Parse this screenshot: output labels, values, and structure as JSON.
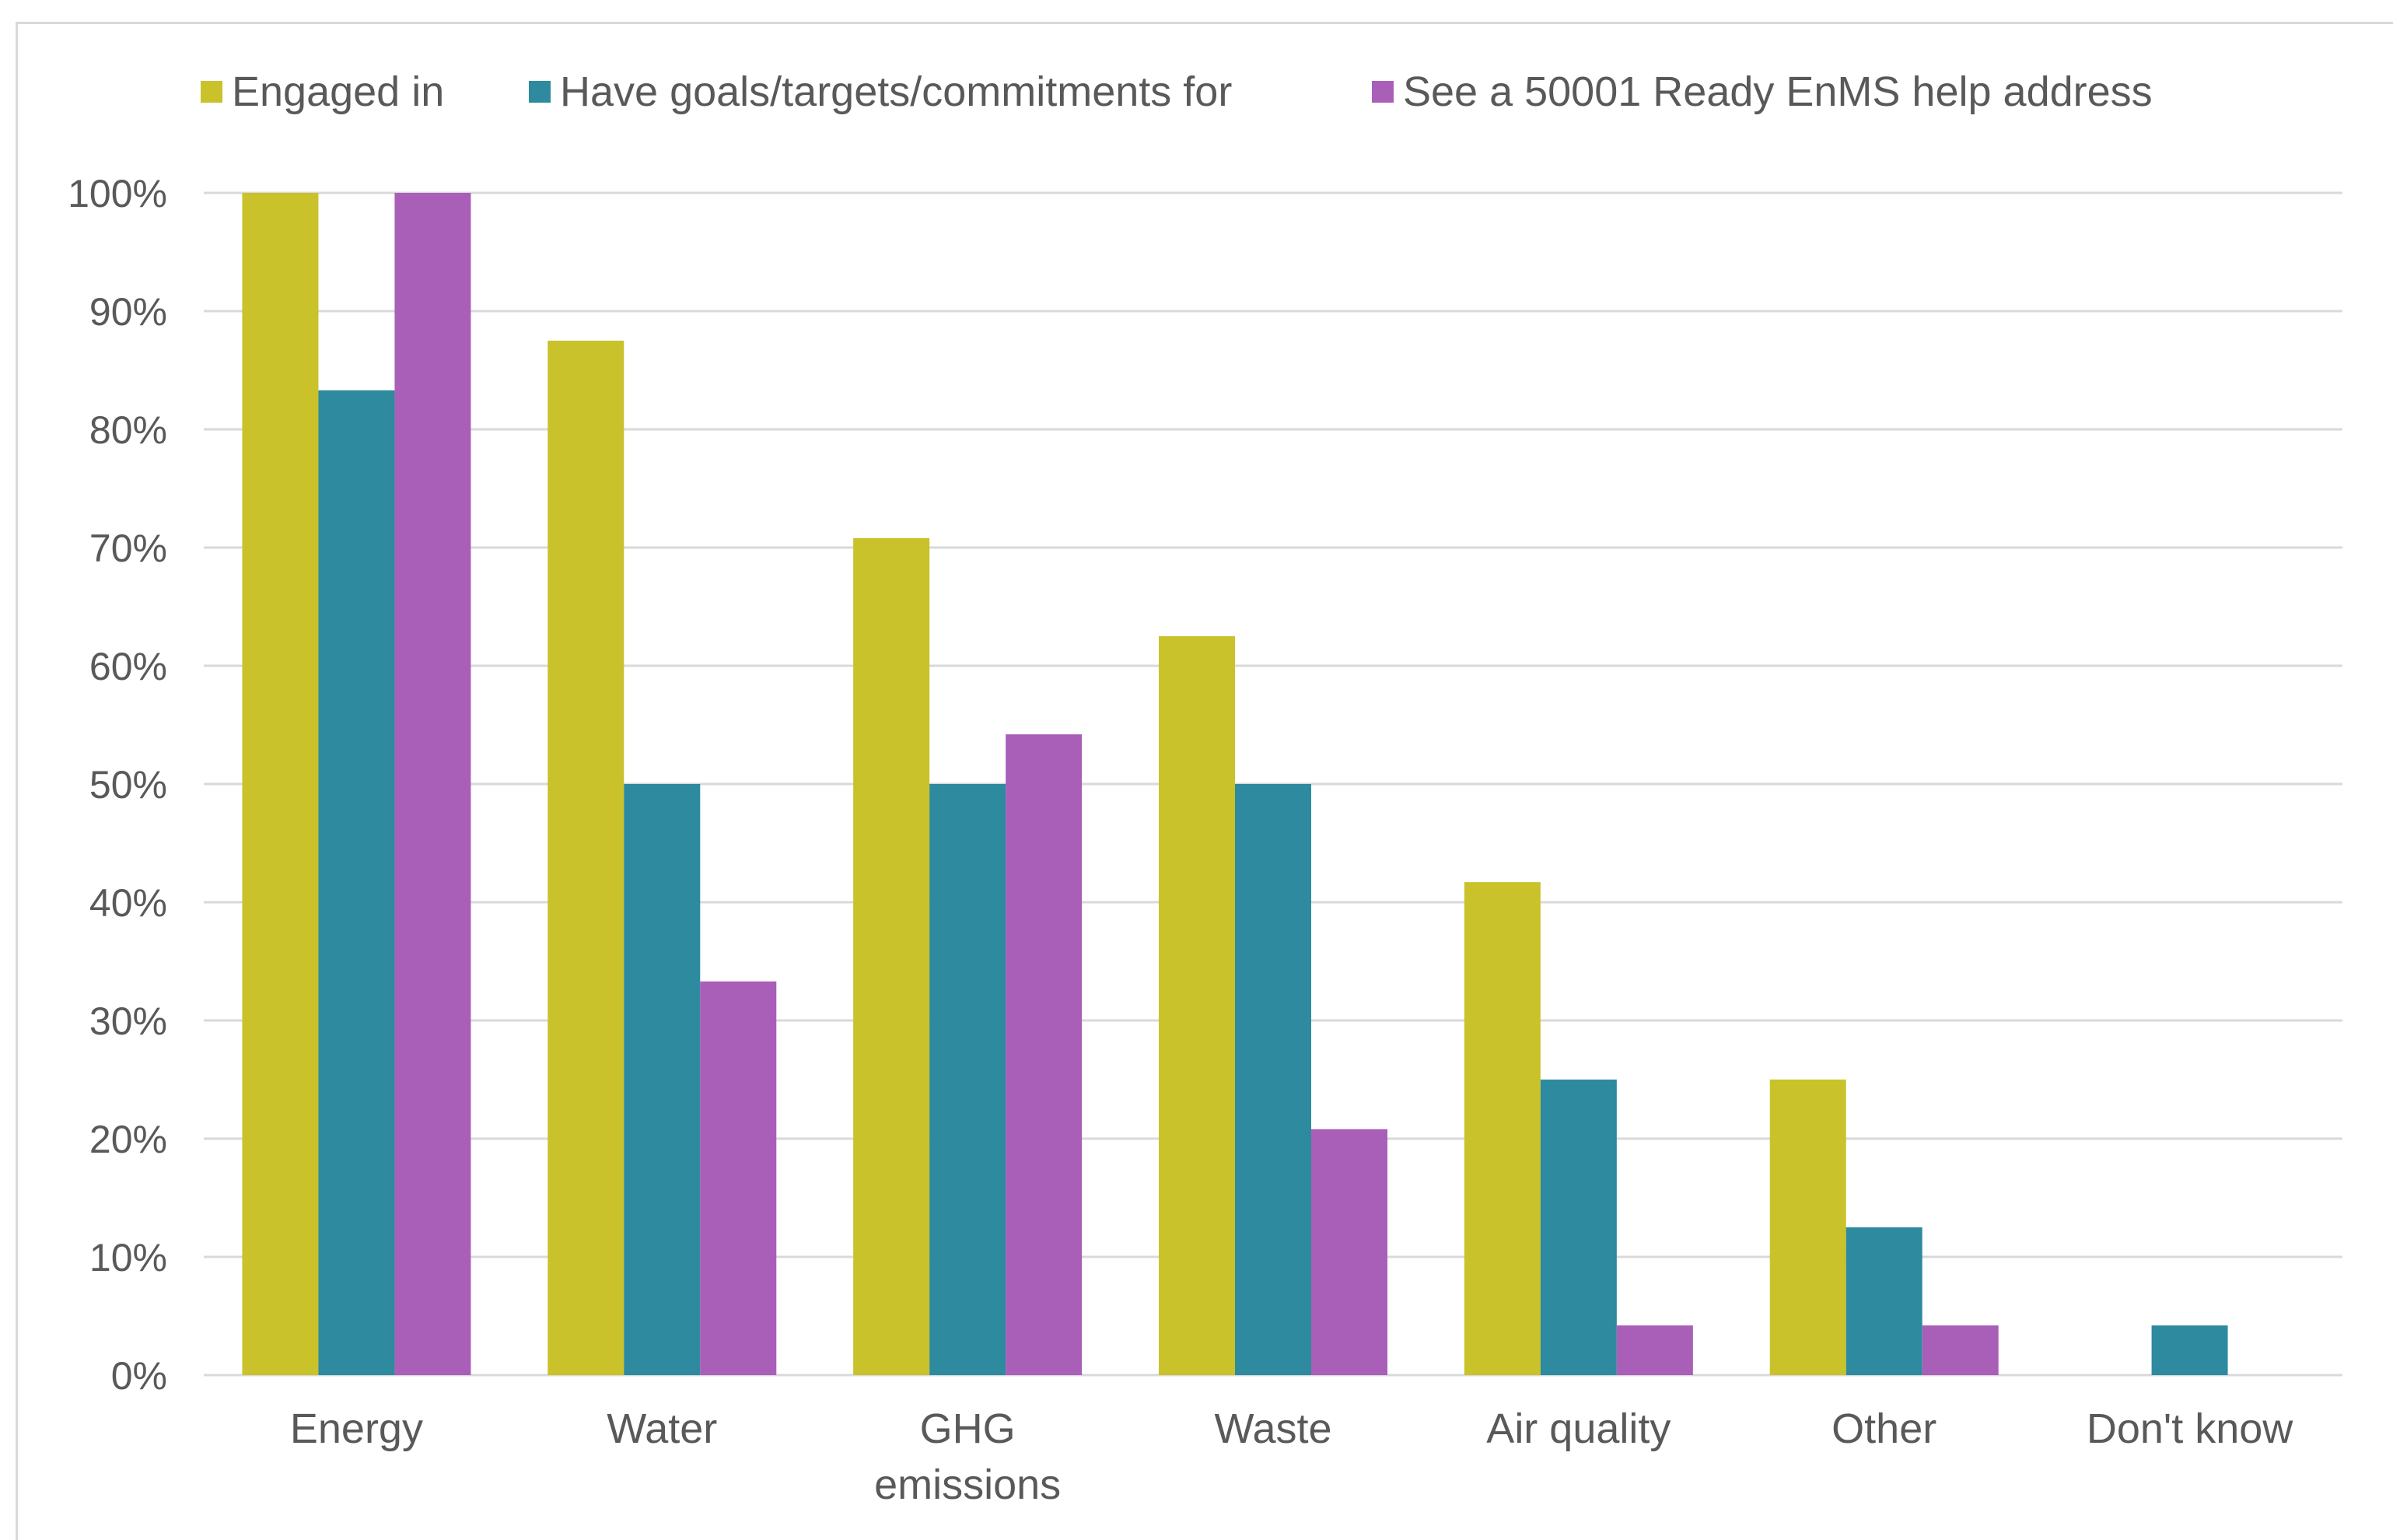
{
  "chart_data": {
    "type": "bar",
    "title": "",
    "xlabel": "",
    "ylabel": "",
    "categories": [
      [
        "Energy"
      ],
      [
        "Water"
      ],
      [
        "GHG",
        "emissions"
      ],
      [
        "Waste"
      ],
      [
        "Air quality"
      ],
      [
        "Other"
      ],
      [
        "Don't know"
      ]
    ],
    "series": [
      {
        "name": "Engaged in",
        "color": "#c9c22b",
        "values": [
          100,
          87.5,
          70.8,
          62.5,
          41.7,
          25,
          0
        ]
      },
      {
        "name": "Have goals/targets/commitments for",
        "color": "#2e8a9e",
        "values": [
          83.3,
          50,
          50,
          50,
          25,
          12.5,
          4.2
        ]
      },
      {
        "name": "See a 50001 Ready EnMS help address",
        "color": "#a95fb8",
        "values": [
          100,
          33.3,
          54.2,
          20.8,
          4.2,
          4.2,
          0
        ]
      }
    ],
    "ylim": [
      0,
      100
    ],
    "y_ticks": [
      "0%",
      "10%",
      "20%",
      "30%",
      "40%",
      "50%",
      "60%",
      "70%",
      "80%",
      "90%",
      "100%"
    ],
    "grid": true,
    "gridline_color": "#d9d9d9",
    "legend_position": "top"
  }
}
